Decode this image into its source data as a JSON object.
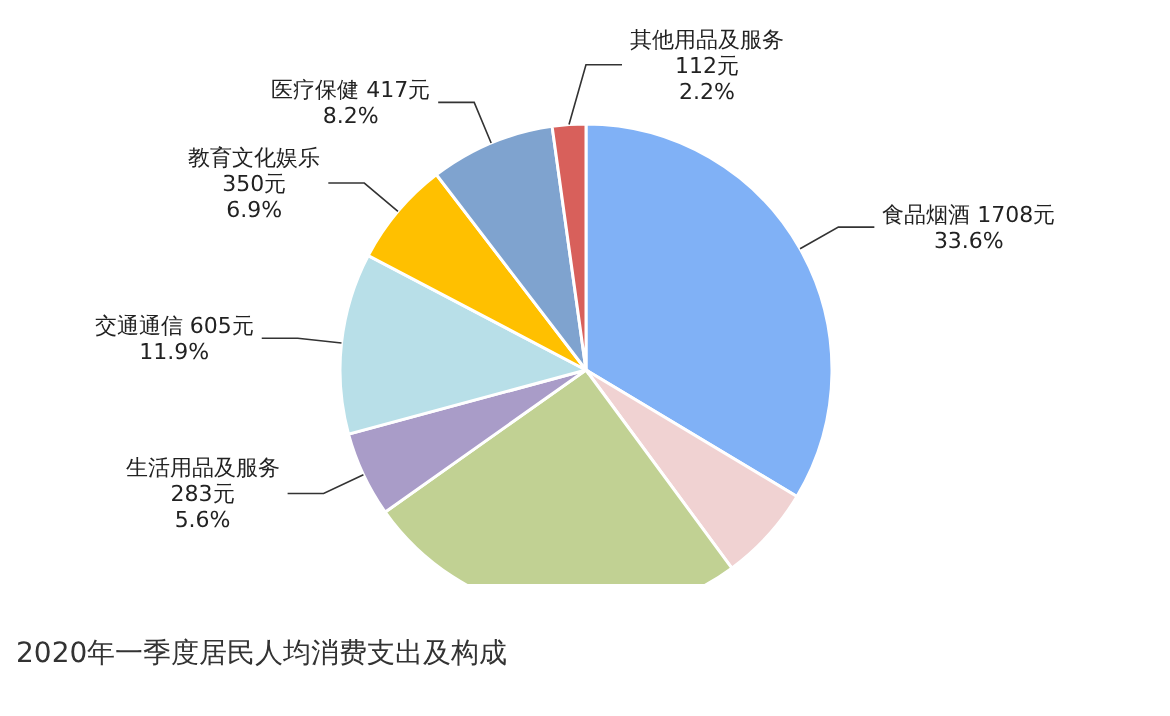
{
  "chart_data": {
    "type": "pie",
    "categories": [
      "食品烟酒",
      null,
      null,
      "生活用品及服务",
      "交通通信",
      "教育文化娱乐",
      "医疗保健",
      "其他用品及服务"
    ],
    "values": [
      33.6,
      6.3,
      25.3,
      5.6,
      11.9,
      6.9,
      8.2,
      2.2
    ],
    "value_labels": [
      "1708元\n33.6%",
      null,
      null,
      "283元\n5.6%",
      "605元\n11.9%",
      "350元\n6.9%",
      "417元\n8.2%",
      "112元\n2.2%"
    ],
    "colors": [
      "#80b1f6",
      "#f0d2d2",
      "#c1d193",
      "#a99cc8",
      "#b8dfe8",
      "#ffc000",
      "#7fa3cf",
      "#d8605b"
    ],
    "annotations": [
      "2020年一季度居民人均消费支出及构成"
    ]
  }
}
